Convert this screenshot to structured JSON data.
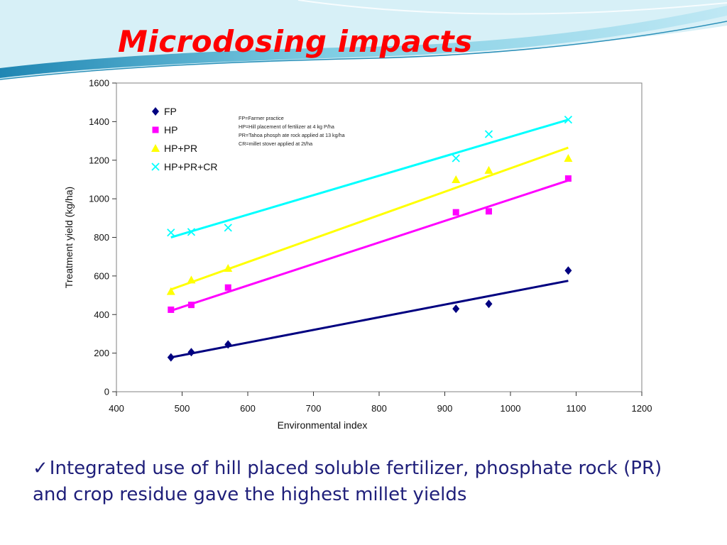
{
  "slide": {
    "title": "Microdosing impacts",
    "bullet_mark": "✓",
    "bullet_text": "Integrated use of hill placed soluble fertilizer, phosphate rock (PR) and crop residue gave the highest millet yields"
  },
  "colors": {
    "title": "#ff0000",
    "bullet_text": "#1f1f7a",
    "swoosh_light": "#d7f0f7",
    "swoosh_mid": "#7fcde3",
    "swoosh_dark": "#2a8fb8"
  },
  "chart_data": {
    "type": "scatter",
    "title": "",
    "xlabel": "Environmental index",
    "ylabel": "Treatment yield (kg/ha)",
    "xlim": [
      400,
      1200
    ],
    "ylim": [
      0,
      1600
    ],
    "xticks": [
      400,
      500,
      600,
      700,
      800,
      900,
      1000,
      1100,
      1200
    ],
    "yticks": [
      0,
      200,
      400,
      600,
      800,
      1000,
      1200,
      1400,
      1600
    ],
    "grid": false,
    "legend": "top-left",
    "notes": [
      "FP=Farmer practice",
      "HP=Hill placement of fertilizer at 4 kg P/ha",
      "PR=Tahoa phosph ate rock applied at 13 kg/ha",
      "CR=millet stover applied at 2t/ha"
    ],
    "series": [
      {
        "name": "FP",
        "color": "#000080",
        "marker": "diamond",
        "x": [
          483,
          514,
          570,
          917,
          967,
          1088
        ],
        "y": [
          178,
          205,
          245,
          430,
          455,
          628
        ],
        "trend": [
          [
            483,
            178
          ],
          [
            1088,
            575
          ]
        ]
      },
      {
        "name": "HP",
        "color": "#ff00ff",
        "marker": "square",
        "x": [
          483,
          514,
          570,
          917,
          967,
          1088
        ],
        "y": [
          425,
          450,
          540,
          930,
          935,
          1105
        ],
        "trend": [
          [
            483,
            420
          ],
          [
            1088,
            1095
          ]
        ]
      },
      {
        "name": "HP+PR",
        "color": "#ffff00",
        "marker": "triangle",
        "x": [
          483,
          514,
          570,
          917,
          967,
          1088
        ],
        "y": [
          520,
          580,
          640,
          1100,
          1148,
          1210
        ],
        "trend": [
          [
            483,
            530
          ],
          [
            1088,
            1265
          ]
        ]
      },
      {
        "name": "HP+PR+CR",
        "color": "#00ffff",
        "marker": "x",
        "x": [
          483,
          514,
          570,
          917,
          967,
          1088
        ],
        "y": [
          825,
          828,
          850,
          1210,
          1335,
          1410
        ],
        "trend": [
          [
            483,
            800
          ],
          [
            1088,
            1410
          ]
        ]
      }
    ]
  }
}
